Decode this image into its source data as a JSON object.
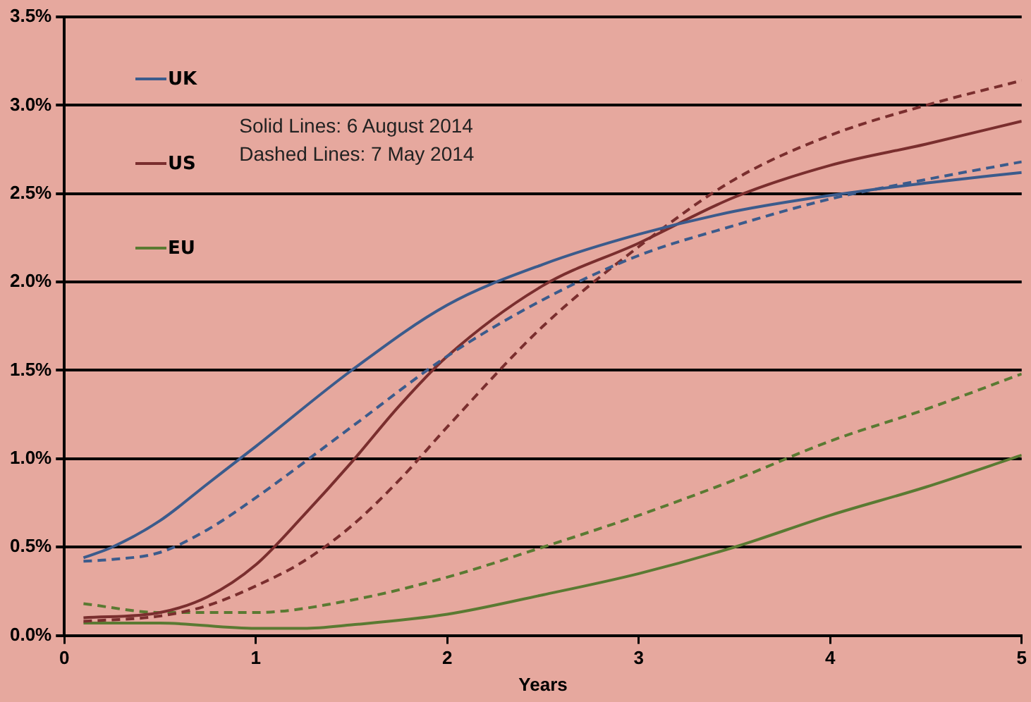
{
  "chart_data": {
    "type": "line",
    "xlabel": "Years",
    "xlim": [
      0,
      5
    ],
    "xticks": [
      0,
      1,
      2,
      3,
      4,
      5
    ],
    "ylim": [
      0,
      3.5
    ],
    "yticks": [
      {
        "value": 0,
        "label": "0.0%"
      },
      {
        "value": 0.5,
        "label": "0.5%"
      },
      {
        "value": 1,
        "label": "1.0%"
      },
      {
        "value": 1.5,
        "label": "1.5%"
      },
      {
        "value": 2,
        "label": "2.0%"
      },
      {
        "value": 2.5,
        "label": "2.5%"
      },
      {
        "value": 3,
        "label": "3.0%"
      },
      {
        "value": 3.5,
        "label": "3.5%"
      }
    ],
    "grid": "y",
    "legend": "top left",
    "marker": "none",
    "annotations": [
      "Solid Lines: 6 August 2014",
      "Dashed Lines: 7 May 2014"
    ],
    "series": [
      {
        "name": "UK",
        "color": "#3b5b8c",
        "line_style": "solid",
        "x": [
          0.1,
          0.25,
          0.5,
          0.75,
          1,
          1.5,
          2,
          2.5,
          3,
          3.5,
          4,
          4.5,
          5
        ],
        "values": [
          0.44,
          0.5,
          0.65,
          0.86,
          1.07,
          1.5,
          1.87,
          2.1,
          2.27,
          2.4,
          2.49,
          2.56,
          2.62
        ]
      },
      {
        "color": "#3b5b8c",
        "line_style": "dashed",
        "x": [
          0.1,
          0.25,
          0.5,
          0.75,
          1,
          1.5,
          2,
          2.5,
          3,
          3.5,
          4,
          4.5,
          5
        ],
        "values": [
          0.42,
          0.43,
          0.47,
          0.6,
          0.78,
          1.18,
          1.58,
          1.9,
          2.15,
          2.32,
          2.47,
          2.58,
          2.68
        ]
      },
      {
        "name": "US",
        "color": "#7a2e2e",
        "line_style": "solid",
        "x": [
          0.1,
          0.5,
          0.75,
          1,
          1.25,
          1.5,
          1.75,
          2,
          2.5,
          3,
          3.5,
          4,
          4.5,
          5
        ],
        "values": [
          0.1,
          0.13,
          0.22,
          0.4,
          0.68,
          0.98,
          1.3,
          1.58,
          1.98,
          2.22,
          2.48,
          2.66,
          2.78,
          2.91
        ]
      },
      {
        "color": "#7a2e2e",
        "line_style": "dashed",
        "x": [
          0.1,
          0.5,
          0.75,
          1,
          1.25,
          1.5,
          1.75,
          2,
          2.5,
          3,
          3.5,
          4,
          4.5,
          5
        ],
        "values": [
          0.08,
          0.11,
          0.17,
          0.28,
          0.42,
          0.62,
          0.88,
          1.18,
          1.75,
          2.2,
          2.58,
          2.83,
          3.0,
          3.14
        ]
      },
      {
        "name": "EU",
        "color": "#5a7a32",
        "line_style": "solid",
        "x": [
          0.1,
          0.5,
          1,
          1.25,
          1.5,
          2,
          2.5,
          3,
          3.5,
          4,
          4.5,
          5
        ],
        "values": [
          0.07,
          0.07,
          0.04,
          0.04,
          0.06,
          0.12,
          0.23,
          0.35,
          0.5,
          0.68,
          0.84,
          1.02
        ]
      },
      {
        "color": "#5a7a32",
        "line_style": "dashed",
        "x": [
          0.1,
          0.5,
          1,
          1.5,
          2,
          2.5,
          3,
          3.5,
          4,
          4.5,
          5
        ],
        "values": [
          0.18,
          0.13,
          0.13,
          0.2,
          0.33,
          0.5,
          0.68,
          0.88,
          1.1,
          1.28,
          1.48
        ]
      }
    ]
  }
}
